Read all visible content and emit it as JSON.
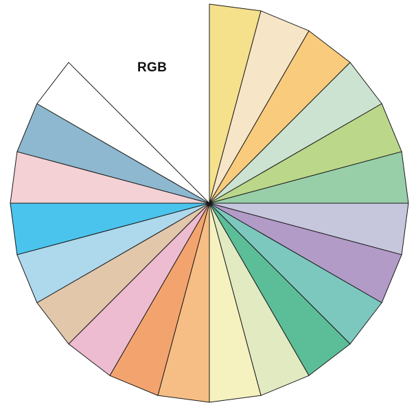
{
  "title": "RGB",
  "wheel": {
    "segments": [
      {
        "name": "yellow-1",
        "color": "#F5E08C"
      },
      {
        "name": "cream",
        "color": "#F7E5C8"
      },
      {
        "name": "light-orange",
        "color": "#F8CB7D"
      },
      {
        "name": "mint",
        "color": "#CDE3D2"
      },
      {
        "name": "lime-green",
        "color": "#BBD78A"
      },
      {
        "name": "sea-green",
        "color": "#98CFA9"
      },
      {
        "name": "lavender-gray",
        "color": "#C6C6DD"
      },
      {
        "name": "purple",
        "color": "#B29BC7"
      },
      {
        "name": "teal",
        "color": "#7CC8BE"
      },
      {
        "name": "green",
        "color": "#5BBE98"
      },
      {
        "name": "pale-green",
        "color": "#E2EAC2"
      },
      {
        "name": "pale-yellow",
        "color": "#F5F2C0"
      },
      {
        "name": "light-orange-2",
        "color": "#F6BE84"
      },
      {
        "name": "orange",
        "color": "#F3A46E"
      },
      {
        "name": "pink",
        "color": "#EDBCD1"
      },
      {
        "name": "tan",
        "color": "#E2C7AB"
      },
      {
        "name": "light-blue",
        "color": "#AED8EC"
      },
      {
        "name": "sky-blue",
        "color": "#4BC4ED"
      },
      {
        "name": "pale-pink",
        "color": "#F3D1D4"
      },
      {
        "name": "steel-blue",
        "color": "#8DB8CF"
      },
      {
        "name": "white",
        "color": "#FFFFFF"
      }
    ]
  }
}
